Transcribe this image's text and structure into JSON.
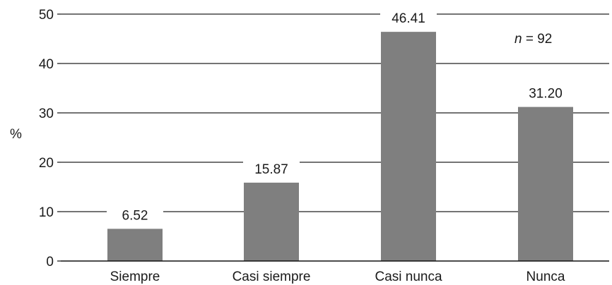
{
  "chart_data": {
    "type": "bar",
    "categories": [
      "Siempre",
      "Casi siempre",
      "Casi nunca",
      "Nunca"
    ],
    "values": [
      6.52,
      15.87,
      46.41,
      31.2
    ],
    "value_labels": [
      "6.52",
      "15.87",
      "46.41",
      "31.20"
    ],
    "ylabel": "%",
    "ylim": [
      0,
      50
    ],
    "yticks": [
      "0",
      "10",
      "20",
      "30",
      "40",
      "50"
    ],
    "annotation": {
      "italic": "n",
      "rest": " = 92"
    },
    "grid": true,
    "bar_color": "#7f7f7f"
  }
}
